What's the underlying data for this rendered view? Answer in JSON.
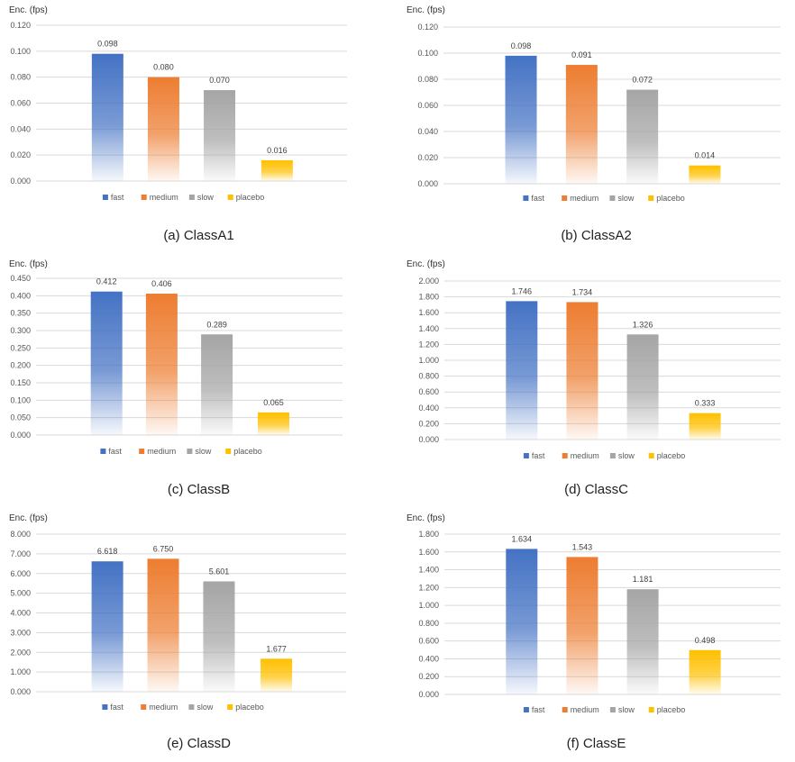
{
  "chart_data": [
    {
      "type": "bar",
      "caption": "(a)  ClassA1",
      "ylabel": "Enc. (fps)",
      "ylim": [
        0,
        0.12
      ],
      "yticks": [
        "0.000",
        "0.020",
        "0.040",
        "0.060",
        "0.080",
        "0.100",
        "0.120"
      ],
      "categories": [
        "fast",
        "medium",
        "slow",
        "placebo"
      ],
      "values": [
        0.098,
        0.08,
        0.07,
        0.016
      ],
      "value_labels": [
        "0.098",
        "0.080",
        "0.070",
        "0.016"
      ],
      "grid": true,
      "legend": "bottom"
    },
    {
      "type": "bar",
      "caption": "(b)  ClassA2",
      "ylabel": "Enc. (fps)",
      "ylim": [
        0,
        0.12
      ],
      "yticks": [
        "0.000",
        "0.020",
        "0.040",
        "0.060",
        "0.080",
        "0.100",
        "0.120"
      ],
      "categories": [
        "fast",
        "medium",
        "slow",
        "placebo"
      ],
      "values": [
        0.098,
        0.091,
        0.072,
        0.014
      ],
      "value_labels": [
        "0.098",
        "0.091",
        "0.072",
        "0.014"
      ],
      "grid": true,
      "legend": "bottom"
    },
    {
      "type": "bar",
      "caption": "(c)  ClassB",
      "ylabel": "Enc. (fps)",
      "ylim": [
        0,
        0.45
      ],
      "yticks": [
        "0.000",
        "0.050",
        "0.100",
        "0.150",
        "0.200",
        "0.250",
        "0.300",
        "0.350",
        "0.400",
        "0.450"
      ],
      "categories": [
        "fast",
        "medium",
        "slow",
        "placebo"
      ],
      "values": [
        0.412,
        0.406,
        0.289,
        0.065
      ],
      "value_labels": [
        "0.412",
        "0.406",
        "0.289",
        "0.065"
      ],
      "grid": true,
      "legend": "bottom"
    },
    {
      "type": "bar",
      "caption": "(d)  ClassC",
      "ylabel": "Enc. (fps)",
      "ylim": [
        0,
        2.0
      ],
      "yticks": [
        "0.000",
        "0.200",
        "0.400",
        "0.600",
        "0.800",
        "1.000",
        "1.200",
        "1.400",
        "1.600",
        "1.800",
        "2.000"
      ],
      "categories": [
        "fast",
        "medium",
        "slow",
        "placebo"
      ],
      "values": [
        1.746,
        1.734,
        1.326,
        0.333
      ],
      "value_labels": [
        "1.746",
        "1.734",
        "1.326",
        "0.333"
      ],
      "grid": true,
      "legend": "bottom"
    },
    {
      "type": "bar",
      "caption": "(e)  ClassD",
      "ylabel": "Enc. (fps)",
      "ylim": [
        0,
        8.0
      ],
      "yticks": [
        "0.000",
        "1.000",
        "2.000",
        "3.000",
        "4.000",
        "5.000",
        "6.000",
        "7.000",
        "8.000"
      ],
      "categories": [
        "fast",
        "medium",
        "slow",
        "placebo"
      ],
      "values": [
        6.618,
        6.75,
        5.601,
        1.677
      ],
      "value_labels": [
        "6.618",
        "6.750",
        "5.601",
        "1.677"
      ],
      "grid": true,
      "legend": "bottom"
    },
    {
      "type": "bar",
      "caption": "(f)  ClassE",
      "ylabel": "Enc. (fps)",
      "ylim": [
        0,
        1.8
      ],
      "yticks": [
        "0.000",
        "0.200",
        "0.400",
        "0.600",
        "0.800",
        "1.000",
        "1.200",
        "1.400",
        "1.600",
        "1.800"
      ],
      "categories": [
        "fast",
        "medium",
        "slow",
        "placebo"
      ],
      "values": [
        1.634,
        1.543,
        1.181,
        0.498
      ],
      "value_labels": [
        "1.634",
        "1.543",
        "1.181",
        "0.498"
      ],
      "grid": true,
      "legend": "bottom"
    }
  ],
  "colors": {
    "fast": "#4472C4",
    "medium": "#ED7D31",
    "slow": "#A5A5A5",
    "placebo": "#FFC000",
    "grid": "#D9D9D9"
  }
}
